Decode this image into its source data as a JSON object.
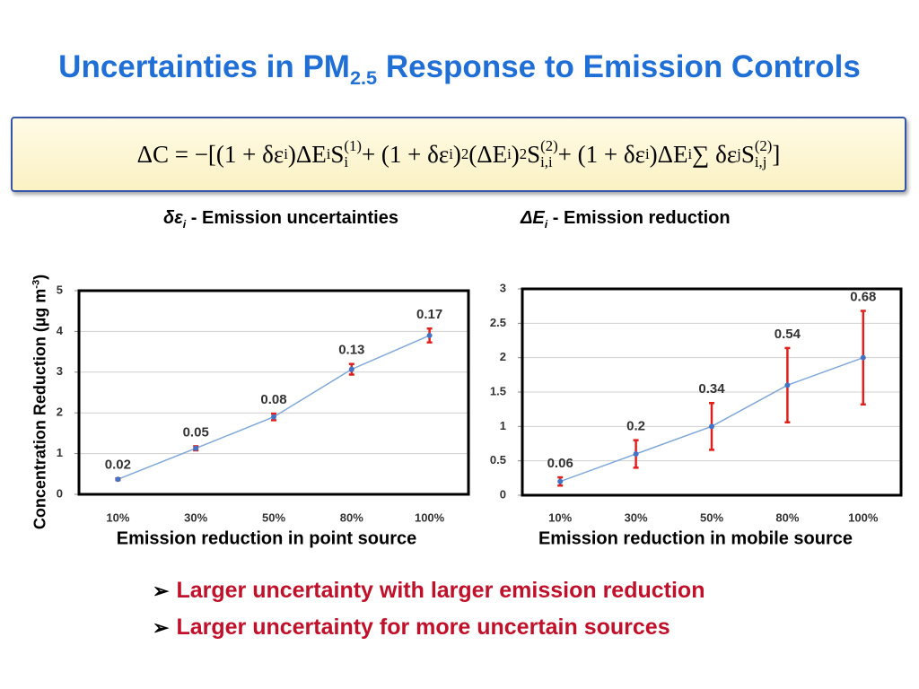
{
  "title": [
    {
      "text": "Uncertainties in PM",
      "pos": "base"
    },
    {
      "text": "2.5",
      "pos": "sub"
    },
    {
      "text": " Response to Emission Controls",
      "pos": "base"
    }
  ],
  "equation": [
    {
      "text": "ΔC = −[(1 + δε",
      "pos": "base"
    },
    {
      "text": "i",
      "pos": "sub"
    },
    {
      "text": ")ΔE",
      "pos": "base"
    },
    {
      "text": "i",
      "pos": "sub"
    },
    {
      "text": "S",
      "pos": "base"
    },
    {
      "text": "(1)",
      "pos": "sup"
    },
    {
      "text": "i",
      "pos": "sub"
    },
    {
      "text": " + (1 + δε",
      "pos": "base"
    },
    {
      "text": "i",
      "pos": "sub"
    },
    {
      "text": ")",
      "pos": "base"
    },
    {
      "text": "2",
      "pos": "sup"
    },
    {
      "text": " (ΔE",
      "pos": "base"
    },
    {
      "text": "i",
      "pos": "sub"
    },
    {
      "text": ")",
      "pos": "base"
    },
    {
      "text": "2",
      "pos": "sup"
    },
    {
      "text": " S",
      "pos": "base"
    },
    {
      "text": "(2)",
      "pos": "sup"
    },
    {
      "text": "i,i",
      "pos": "sub"
    },
    {
      "text": " + (1 + δε",
      "pos": "base"
    },
    {
      "text": "i",
      "pos": "sub"
    },
    {
      "text": ")ΔE",
      "pos": "base"
    },
    {
      "text": "i",
      "pos": "sub"
    },
    {
      "text": " ∑ δε",
      "pos": "base"
    },
    {
      "text": "j",
      "pos": "sub"
    },
    {
      "text": "S",
      "pos": "base"
    },
    {
      "text": "(2)",
      "pos": "sup"
    },
    {
      "text": "i,j",
      "pos": "sub"
    },
    {
      "text": " ]",
      "pos": "base"
    }
  ],
  "legend": [
    [
      {
        "text": "δε",
        "pos": "base",
        "italic": true
      },
      {
        "text": "i",
        "pos": "sub",
        "italic": true
      },
      {
        "text": " - Emission uncertainties",
        "pos": "base"
      }
    ],
    [
      {
        "text": "ΔE",
        "pos": "base",
        "italic": true
      },
      {
        "text": "i",
        "pos": "sub",
        "italic": true
      },
      {
        "text": " - Emission reduction",
        "pos": "base"
      }
    ]
  ],
  "y_label": [
    {
      "text": "Concentration Reduction (µg m",
      "pos": "base"
    },
    {
      "text": "-3",
      "pos": "sup"
    },
    {
      "text": ")",
      "pos": "base"
    }
  ],
  "bullets": [
    "Larger uncertainty with larger emission reduction",
    "Larger uncertainty for more uncertain sources"
  ],
  "chart_data": [
    {
      "type": "line",
      "x_label": "Emission reduction in point source",
      "categories": [
        "10%",
        "30%",
        "50%",
        "80%",
        "100%"
      ],
      "values": [
        0.37,
        1.13,
        1.9,
        3.07,
        3.9
      ],
      "errors": [
        0.02,
        0.05,
        0.08,
        0.13,
        0.17
      ],
      "color": "#7fa8d8",
      "marker_color": "#4472c4",
      "error_color": "#e0201c",
      "ylim": [
        0,
        5
      ],
      "yticks": [
        0,
        1,
        2,
        3,
        4,
        5
      ],
      "grid": true
    },
    {
      "type": "line",
      "x_label": "Emission reduction in mobile source",
      "categories": [
        "10%",
        "30%",
        "50%",
        "80%",
        "100%"
      ],
      "values": [
        0.2,
        0.6,
        1.0,
        1.6,
        2.0
      ],
      "errors": [
        0.06,
        0.2,
        0.34,
        0.54,
        0.68
      ],
      "color": "#7fa8d8",
      "marker_color": "#4472c4",
      "error_color": "#e0201c",
      "ylim": [
        0,
        3
      ],
      "yticks": [
        0,
        0.5,
        1,
        1.5,
        2,
        2.5,
        3
      ],
      "grid": true
    }
  ]
}
